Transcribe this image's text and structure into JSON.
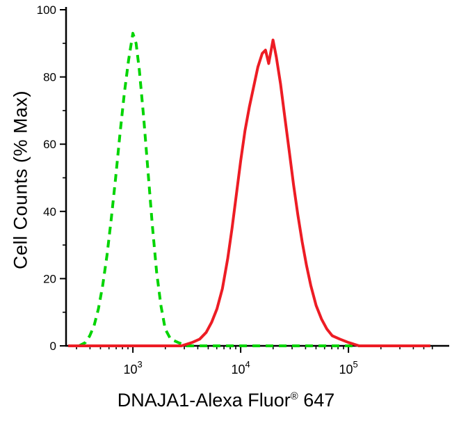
{
  "figure": {
    "ylabel": "Cell Counts (% Max)",
    "xlabel_main": "DNAJA1-Alexa Fluor",
    "xlabel_reg": "®",
    "xlabel_suffix": " 647"
  },
  "chart_data": {
    "type": "line",
    "title": "",
    "subtitle": "",
    "xlabel": "DNAJA1-Alexa Fluor® 647",
    "ylabel": "Cell Counts (% Max)",
    "x_scale": "log10",
    "xlim_log10": [
      2.38,
      5.78
    ],
    "ylim": [
      0,
      100
    ],
    "x_major_ticks_log10": [
      3,
      4,
      5
    ],
    "x_tick_label_base": "10",
    "y_ticks": [
      0,
      20,
      40,
      60,
      80,
      100
    ],
    "y_minor_ticks": [
      10,
      30,
      50,
      70,
      90
    ],
    "grid": false,
    "legend": "none",
    "axis_color": "#000000",
    "background_color": "#ffffff",
    "series": [
      {
        "name": "control-green-dashed",
        "color": "#00d400",
        "style": "dashed",
        "line_width": 4,
        "peak_log10x": 3.0,
        "peak_y": 93,
        "points_log10x_y": [
          [
            2.5,
            0
          ],
          [
            2.56,
            1
          ],
          [
            2.6,
            3
          ],
          [
            2.64,
            6
          ],
          [
            2.68,
            11
          ],
          [
            2.72,
            18
          ],
          [
            2.76,
            27
          ],
          [
            2.8,
            38
          ],
          [
            2.84,
            50
          ],
          [
            2.88,
            63
          ],
          [
            2.92,
            75
          ],
          [
            2.96,
            85
          ],
          [
            3.0,
            93
          ],
          [
            3.03,
            90
          ],
          [
            3.06,
            82
          ],
          [
            3.1,
            68
          ],
          [
            3.14,
            52
          ],
          [
            3.18,
            36
          ],
          [
            3.22,
            22
          ],
          [
            3.26,
            12
          ],
          [
            3.3,
            5
          ],
          [
            3.35,
            2
          ],
          [
            3.42,
            1
          ],
          [
            3.5,
            0
          ],
          [
            4.0,
            0
          ],
          [
            4.5,
            0
          ],
          [
            5.0,
            0
          ],
          [
            5.5,
            0
          ],
          [
            5.76,
            0
          ]
        ]
      },
      {
        "name": "dnaja1-red-solid",
        "color": "#ed1c24",
        "style": "solid",
        "line_width": 4,
        "peak_log10x": 4.3,
        "peak_y": 91,
        "points_log10x_y": [
          [
            2.4,
            0
          ],
          [
            3.0,
            0
          ],
          [
            3.45,
            0
          ],
          [
            3.55,
            1
          ],
          [
            3.62,
            2
          ],
          [
            3.68,
            4
          ],
          [
            3.73,
            7
          ],
          [
            3.78,
            11
          ],
          [
            3.83,
            17
          ],
          [
            3.88,
            26
          ],
          [
            3.92,
            35
          ],
          [
            3.96,
            45
          ],
          [
            4.0,
            55
          ],
          [
            4.04,
            64
          ],
          [
            4.08,
            71
          ],
          [
            4.12,
            77
          ],
          [
            4.16,
            83
          ],
          [
            4.2,
            87
          ],
          [
            4.23,
            88
          ],
          [
            4.26,
            84
          ],
          [
            4.3,
            91
          ],
          [
            4.33,
            86
          ],
          [
            4.37,
            78
          ],
          [
            4.41,
            68
          ],
          [
            4.45,
            58
          ],
          [
            4.49,
            48
          ],
          [
            4.53,
            39
          ],
          [
            4.57,
            31
          ],
          [
            4.61,
            24
          ],
          [
            4.65,
            18
          ],
          [
            4.7,
            12
          ],
          [
            4.75,
            8
          ],
          [
            4.8,
            5
          ],
          [
            4.85,
            3
          ],
          [
            4.92,
            2
          ],
          [
            5.0,
            1
          ],
          [
            5.1,
            0
          ],
          [
            5.4,
            0
          ],
          [
            5.76,
            0
          ]
        ]
      }
    ]
  }
}
